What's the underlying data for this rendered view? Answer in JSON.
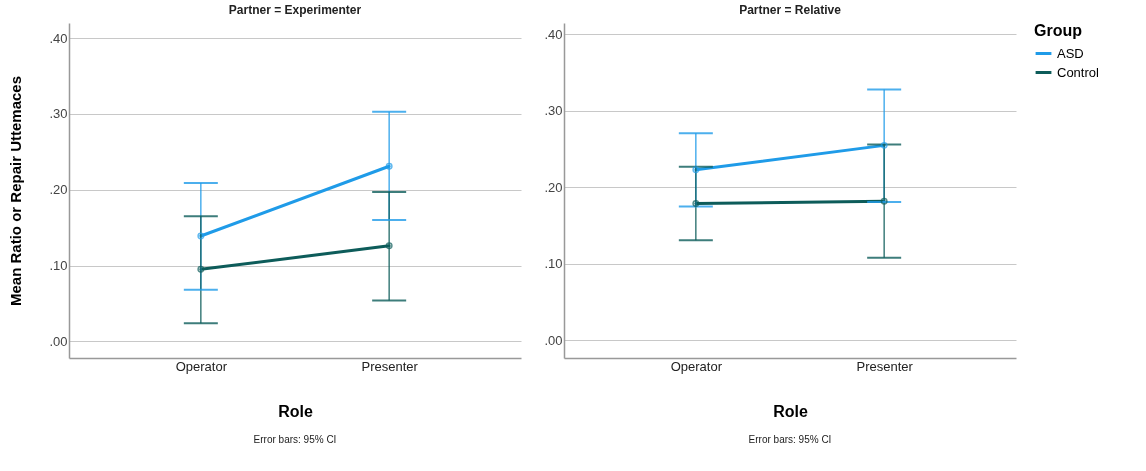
{
  "chart_data": [
    {
      "type": "line",
      "title": "Partner = Experimenter",
      "xlabel": "Role",
      "ylabel": "Mean Ratio or Repair Uttemaces",
      "categories": [
        "Operator",
        "Presenter"
      ],
      "ylim": [
        -0.022,
        0.42
      ],
      "yticks": [
        {
          "value": 0,
          "label": ".00"
        },
        {
          "value": 0.1,
          "label": ".10"
        },
        {
          "value": 0.2,
          "label": ".20"
        },
        {
          "value": 0.3,
          "label": ".30"
        },
        {
          "value": 0.4,
          "label": ".40"
        }
      ],
      "grid": "y",
      "marker": "circle",
      "legend": false,
      "annotations": [
        "Error bars: 95% CI"
      ],
      "series": [
        {
          "color": "#1f9be8",
          "values": [
            0.139,
            0.231
          ],
          "errors": [
            [
              0.068,
              0.209
            ],
            [
              0.16,
              0.303
            ]
          ]
        },
        {
          "color": "#0d5c5a",
          "values": [
            0.095,
            0.126
          ],
          "errors": [
            [
              0.024,
              0.165
            ],
            [
              0.054,
              0.197
            ]
          ]
        }
      ]
    },
    {
      "type": "line",
      "title": "Partner = Relative",
      "xlabel": "Role",
      "legend_title": "Group",
      "categories": [
        "Operator",
        "Presenter"
      ],
      "ylim": [
        -0.023,
        0.415
      ],
      "yticks": [
        {
          "value": 0,
          "label": ".00"
        },
        {
          "value": 0.1,
          "label": ".10"
        },
        {
          "value": 0.2,
          "label": ".20"
        },
        {
          "value": 0.3,
          "label": ".30"
        },
        {
          "value": 0.4,
          "label": ".40"
        }
      ],
      "grid": "y",
      "marker": "circle",
      "legend": "top right",
      "annotations": [
        "Error bars: 95% CI"
      ],
      "series": [
        {
          "name": "ASD",
          "color": "#1f9be8",
          "values": [
            0.223,
            0.255
          ],
          "errors": [
            [
              0.175,
              0.271
            ],
            [
              0.181,
              0.328
            ]
          ]
        },
        {
          "name": "Control",
          "color": "#0d5c5a",
          "values": [
            0.179,
            0.182
          ],
          "errors": [
            [
              0.131,
              0.227
            ],
            [
              0.108,
              0.256
            ]
          ]
        }
      ]
    }
  ]
}
